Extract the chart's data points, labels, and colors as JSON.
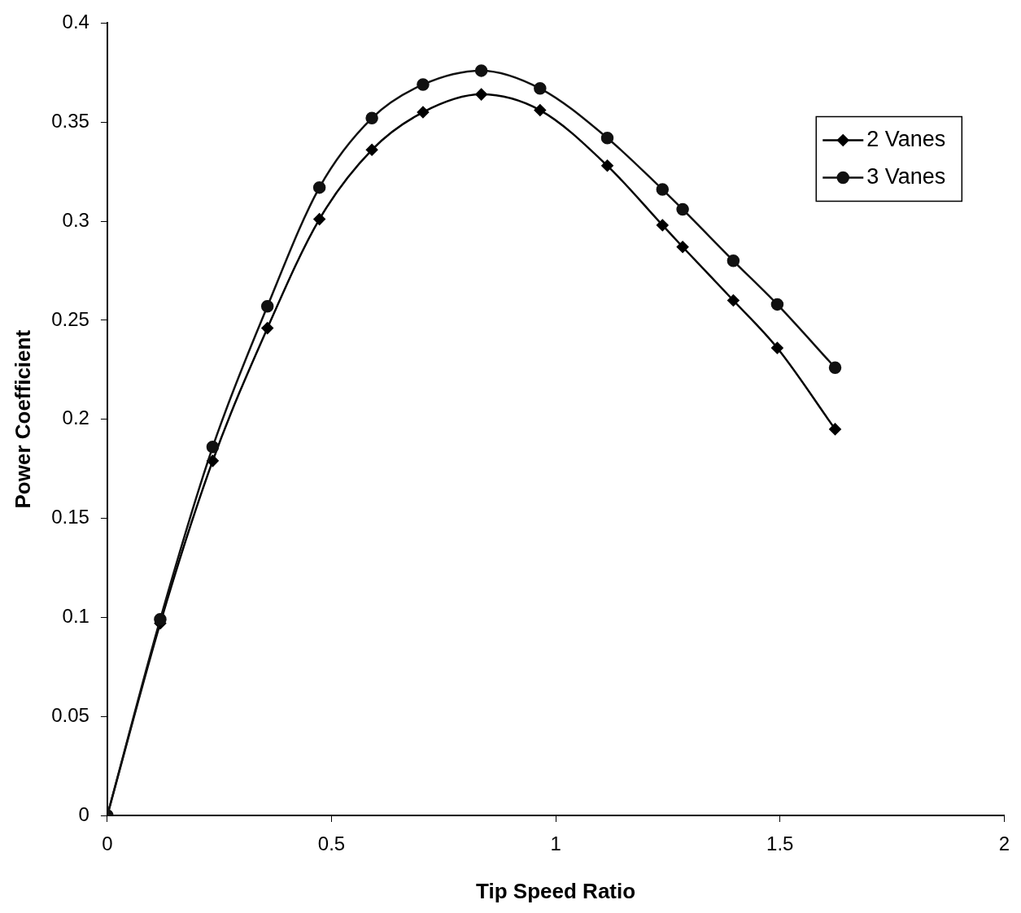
{
  "chart_data": {
    "type": "line",
    "xlabel": "Tip Speed Ratio",
    "ylabel": "Power Coefficient",
    "xlim": [
      0,
      2
    ],
    "xticks": [
      0,
      0.5,
      1,
      1.5,
      2
    ],
    "ylim": [
      0,
      0.4
    ],
    "yticks": [
      0,
      0.05,
      0.1,
      0.15,
      0.2,
      0.25,
      0.3,
      0.35,
      0.4
    ],
    "grid": false,
    "legend": "top right",
    "line_style": "solid",
    "series": [
      {
        "name": "2 Vanes",
        "color": "#000000",
        "marker": "diamond",
        "x": [
          0,
          0.118,
          0.235,
          0.357,
          0.473,
          0.59,
          0.704,
          0.834,
          0.965,
          1.115,
          1.238,
          1.283,
          1.396,
          1.494,
          1.623
        ],
        "values": [
          0,
          0.097,
          0.179,
          0.246,
          0.301,
          0.336,
          0.355,
          0.364,
          0.356,
          0.328,
          0.298,
          0.287,
          0.26,
          0.236,
          0.195
        ]
      },
      {
        "name": "3 Vanes",
        "color": "#111111",
        "marker": "circle",
        "x": [
          0,
          0.118,
          0.235,
          0.357,
          0.473,
          0.59,
          0.704,
          0.834,
          0.965,
          1.115,
          1.238,
          1.283,
          1.396,
          1.494,
          1.623
        ],
        "values": [
          0,
          0.099,
          0.186,
          0.257,
          0.317,
          0.352,
          0.369,
          0.376,
          0.367,
          0.342,
          0.316,
          0.306,
          0.28,
          0.258,
          0.226
        ]
      }
    ]
  }
}
